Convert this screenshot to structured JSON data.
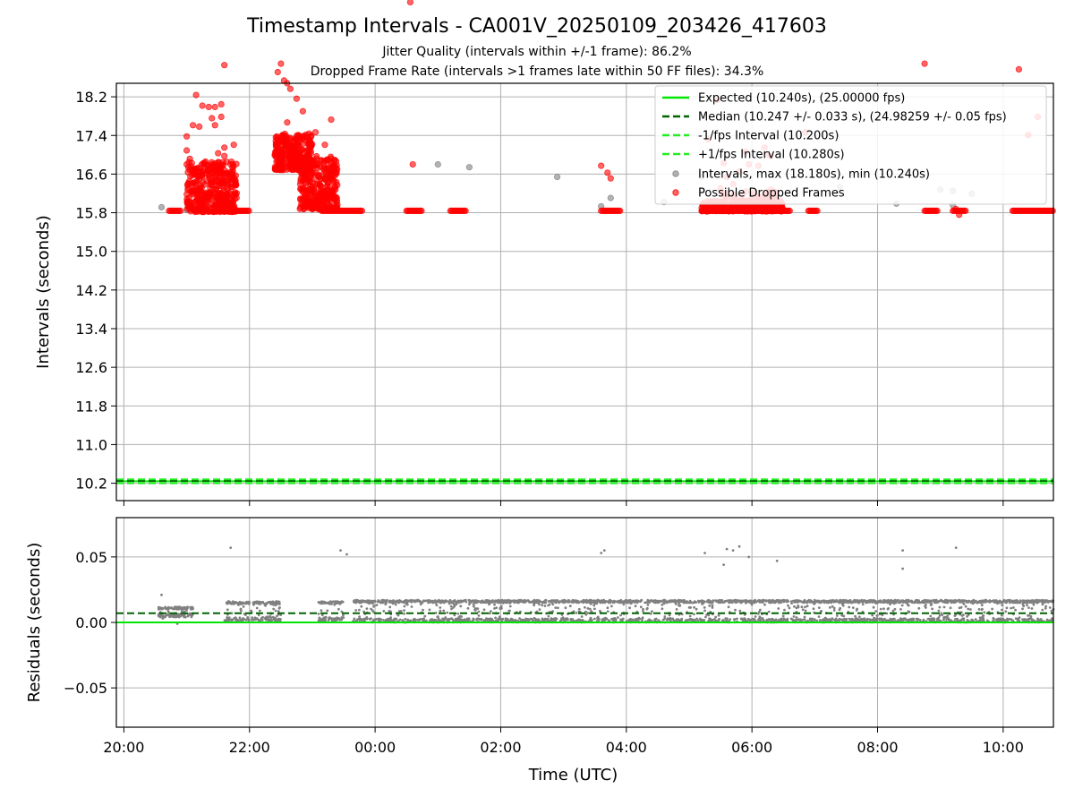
{
  "chart_data": [
    {
      "type": "scatter",
      "title": "Timestamp Intervals - CA001V_20250109_203426_417603",
      "subtitles": [
        "Jitter Quality (intervals within +/-1 frame): 86.2%",
        "Dropped Frame Rate (intervals >1 frames late within 50 FF files): 34.3%"
      ],
      "xlabel": "",
      "ylabel": "Intervals (seconds)",
      "xlim": [
        -0.12,
        14.8
      ],
      "ylim": [
        9.84,
        18.48
      ],
      "grid": true,
      "legend_position": "top-right",
      "yticks": [
        "10.2",
        "11.0",
        "11.8",
        "12.6",
        "13.4",
        "14.2",
        "15.0",
        "15.8",
        "16.6",
        "17.4",
        "18.2"
      ],
      "lines": [
        {
          "name": "Expected (10.240s), (25.00000 fps)",
          "y": 10.24,
          "color": "#00e600",
          "style": "solid"
        },
        {
          "name": "Median (10.247 +/- 0.033 s), (24.98259 +/- 0.05 fps)",
          "y": 10.247,
          "color": "#006400",
          "style": "dashed"
        },
        {
          "name": "-1/fps Interval (10.200s)",
          "y": 10.2,
          "color": "#22ee22",
          "style": "dashed"
        },
        {
          "name": "+1/fps Interval (10.280s)",
          "y": 10.28,
          "color": "#22ee22",
          "style": "dashed"
        }
      ],
      "series": [
        {
          "name": "Intervals, max (18.180s), min (10.240s)",
          "color": "#808080",
          "points": [
            [
              0.6,
              10.37
            ],
            [
              1.0,
              10.27
            ],
            [
              5.0,
              11.9
            ],
            [
              5.5,
              11.8
            ],
            [
              6.9,
              11.45
            ],
            [
              7.6,
              10.4
            ],
            [
              7.75,
              10.7
            ],
            [
              9.2,
              11.45
            ],
            [
              9.4,
              10.35
            ],
            [
              11.4,
              11.1
            ],
            [
              12.3,
              10.5
            ],
            [
              13.0,
              11.0
            ],
            [
              13.2,
              10.95
            ],
            [
              13.2,
              10.45
            ],
            [
              13.5,
              10.85
            ],
            [
              8.6,
              10.55
            ],
            [
              10.0,
              10.6
            ]
          ]
        },
        {
          "name": "Possible Dropped Frames",
          "color": "#ff0000",
          "points": [
            [
              0.72,
              18.18
            ],
            [
              1.1,
              13.3
            ],
            [
              1.15,
              14.38
            ],
            [
              1.2,
              13.25
            ],
            [
              1.25,
              14.0
            ],
            [
              1.35,
              13.95
            ],
            [
              1.4,
              13.55
            ],
            [
              1.45,
              13.95
            ],
            [
              1.45,
              13.3
            ],
            [
              1.55,
              14.05
            ],
            [
              1.55,
              13.6
            ],
            [
              1.6,
              15.45
            ],
            [
              1.0,
              12.9
            ],
            [
              1.0,
              12.4
            ],
            [
              1.05,
              12.1
            ],
            [
              1.0,
              11.9
            ],
            [
              1.15,
              11.75
            ],
            [
              1.3,
              12.0
            ],
            [
              1.35,
              11.5
            ],
            [
              1.5,
              12.3
            ],
            [
              1.6,
              12.2
            ],
            [
              1.7,
              11.9
            ],
            [
              1.75,
              12.6
            ],
            [
              1.6,
              12.5
            ],
            [
              2.5,
              15.5
            ],
            [
              2.45,
              15.2
            ],
            [
              2.55,
              14.9
            ],
            [
              2.6,
              14.8
            ],
            [
              2.65,
              14.6
            ],
            [
              2.75,
              14.25
            ],
            [
              2.85,
              13.8
            ],
            [
              2.6,
              13.4
            ],
            [
              2.95,
              13.0
            ],
            [
              3.05,
              13.05
            ],
            [
              3.3,
              13.5
            ],
            [
              3.2,
              12.6
            ],
            [
              3.35,
              12.05
            ],
            [
              3.25,
              11.5
            ],
            [
              4.56,
              17.7
            ],
            [
              4.6,
              11.9
            ],
            [
              7.6,
              11.85
            ],
            [
              7.7,
              11.6
            ],
            [
              7.75,
              11.4
            ],
            [
              9.3,
              12.8
            ],
            [
              9.45,
              14.2
            ],
            [
              9.55,
              11.95
            ],
            [
              9.6,
              11.45
            ],
            [
              9.7,
              11.2
            ],
            [
              9.8,
              11.65
            ],
            [
              9.9,
              12.35
            ],
            [
              9.95,
              11.9
            ],
            [
              10.1,
              11.85
            ],
            [
              10.2,
              12.5
            ],
            [
              10.25,
              12.25
            ],
            [
              10.3,
              12.2
            ],
            [
              10.1,
              10.7
            ],
            [
              10.3,
              11.0
            ],
            [
              10.85,
              13.05
            ],
            [
              9.5,
              11.05
            ],
            [
              9.25,
              10.45
            ],
            [
              12.75,
              15.5
            ],
            [
              14.25,
              15.3
            ],
            [
              14.4,
              12.95
            ],
            [
              14.55,
              13.6
            ],
            [
              13.25,
              10.3
            ],
            [
              13.3,
              10.1
            ]
          ],
          "clusters": [
            {
              "x_range": [
                1.0,
                1.8
              ],
              "y_range": [
                10.2,
                12.0
              ],
              "count": 380
            },
            {
              "x_range": [
                2.4,
                3.0
              ],
              "y_range": [
                11.7,
                13.0
              ],
              "count": 300
            },
            {
              "x_range": [
                2.8,
                3.4
              ],
              "y_range": [
                10.3,
                12.2
              ],
              "count": 300
            },
            {
              "x_range": [
                9.2,
                10.5
              ],
              "y_range": [
                10.22,
                10.6
              ],
              "count": 260
            },
            {
              "x_range": [
                9.5,
                10.4
              ],
              "y_range": [
                10.5,
                10.95
              ],
              "count": 60
            }
          ],
          "baseline_runs_y": 10.24,
          "baseline_runs_x": [
            [
              0.72,
              0.92
            ],
            [
              1.55,
              2.0
            ],
            [
              3.15,
              3.8
            ],
            [
              4.5,
              4.75
            ],
            [
              5.2,
              5.45
            ],
            [
              7.6,
              7.9
            ],
            [
              9.2,
              10.6
            ],
            [
              10.9,
              11.05
            ],
            [
              12.75,
              12.95
            ],
            [
              13.2,
              13.4
            ],
            [
              14.15,
              14.8
            ]
          ]
        }
      ]
    },
    {
      "type": "scatter",
      "title": "",
      "xlabel": "Time (UTC)",
      "ylabel": "Residuals (seconds)",
      "xlim": [
        -0.12,
        14.8
      ],
      "ylim": [
        -0.08,
        0.08
      ],
      "grid": true,
      "yticks": [
        {
          "value": 0.05,
          "label": "0.05"
        },
        {
          "value": 0.0,
          "label": "0.00"
        },
        {
          "value": -0.05,
          "label": "−0.05"
        }
      ],
      "xticks": [
        {
          "value": 0,
          "label": "20:00"
        },
        {
          "value": 2,
          "label": "22:00"
        },
        {
          "value": 4,
          "label": "00:00"
        },
        {
          "value": 6,
          "label": "02:00"
        },
        {
          "value": 8,
          "label": "04:00"
        },
        {
          "value": 10,
          "label": "06:00"
        },
        {
          "value": 12,
          "label": "08:00"
        },
        {
          "value": 14,
          "label": "10:00"
        }
      ],
      "lines": [
        {
          "y": 0.0,
          "color": "#00e600",
          "style": "solid"
        },
        {
          "y": 0.007,
          "color": "#006400",
          "style": "dashed"
        }
      ],
      "series": [
        {
          "name": "Residuals",
          "color": "#808080",
          "points": [
            [
              1.7,
              0.057
            ],
            [
              3.45,
              0.055
            ],
            [
              3.55,
              0.052
            ],
            [
              7.6,
              0.053
            ],
            [
              7.65,
              0.055
            ],
            [
              9.25,
              0.053
            ],
            [
              9.55,
              0.044
            ],
            [
              9.6,
              0.056
            ],
            [
              9.7,
              0.055
            ],
            [
              9.8,
              0.058
            ],
            [
              9.95,
              0.05
            ],
            [
              10.4,
              0.047
            ],
            [
              12.4,
              0.055
            ],
            [
              12.4,
              0.041
            ],
            [
              13.25,
              0.057
            ],
            [
              0.6,
              0.021
            ],
            [
              0.62,
              0.003
            ],
            [
              0.85,
              -0.001
            ]
          ],
          "bands": [
            {
              "x_range": [
                0.55,
                1.1
              ],
              "y_range": [
                0.004,
                0.012
              ]
            },
            {
              "x_range": [
                1.6,
                2.5
              ],
              "y_range": [
                0.001,
                0.016
              ]
            },
            {
              "x_range": [
                3.1,
                3.5
              ],
              "y_range": [
                0.001,
                0.016
              ]
            },
            {
              "x_range": [
                3.65,
                14.8
              ],
              "y_range": [
                0.0,
                0.017
              ]
            }
          ]
        }
      ]
    }
  ]
}
